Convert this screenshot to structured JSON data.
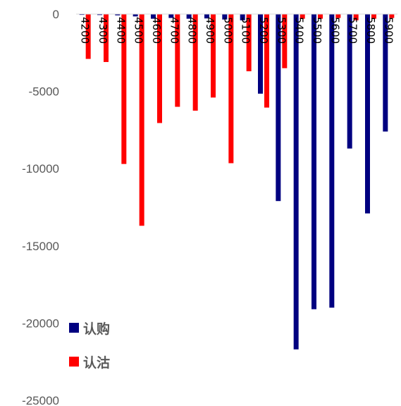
{
  "chart_data": {
    "type": "bar",
    "title": "",
    "xlabel": "",
    "ylabel": "",
    "categories": [
      "4200",
      "4300",
      "4400",
      "4500",
      "4600",
      "4700",
      "4800",
      "4900",
      "5000",
      "5100",
      "5200",
      "5300",
      "5400",
      "5500",
      "5600",
      "5700",
      "5800",
      "5900"
    ],
    "series": [
      {
        "name": "认购",
        "color": "#000080",
        "values": [
          -50,
          -60,
          -80,
          -150,
          -300,
          -250,
          -300,
          -280,
          -350,
          -400,
          -5150,
          -12100,
          -21700,
          -19100,
          -19000,
          -8700,
          -12900,
          -7600
        ]
      },
      {
        "name": "认沽",
        "color": "#ff0000",
        "values": [
          -2900,
          -3100,
          -9700,
          -13700,
          -7050,
          -6000,
          -6250,
          -5400,
          -9650,
          -3700,
          -6050,
          -3500,
          -300,
          -300,
          -250,
          -400,
          -300,
          -250
        ]
      }
    ],
    "ylim": [
      -25000,
      0
    ],
    "yticks": [
      0,
      -5000,
      -10000,
      -15000,
      -20000,
      -25000
    ],
    "grid": false,
    "legend_position": "bottom-left"
  }
}
